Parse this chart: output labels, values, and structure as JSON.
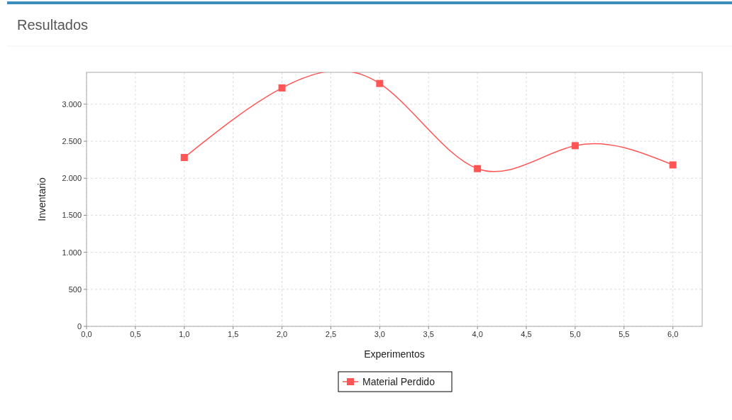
{
  "chart_data": {
    "type": "line",
    "title": "Resultados",
    "xlabel": "Experimentos",
    "ylabel": "Inventario",
    "x": [
      1,
      2,
      3,
      4,
      5,
      6
    ],
    "series": [
      {
        "name": "Material Perdido",
        "color": "#ff5555",
        "values": [
          2280,
          3220,
          3280,
          2130,
          2440,
          2180
        ]
      }
    ],
    "xlim": [
      0,
      6.3
    ],
    "xticks": [
      {
        "value": 0,
        "label": "0,0"
      },
      {
        "value": 0.5,
        "label": "0,5"
      },
      {
        "value": 1,
        "label": "1,0"
      },
      {
        "value": 1.5,
        "label": "1,5"
      },
      {
        "value": 2,
        "label": "2,0"
      },
      {
        "value": 2.5,
        "label": "2,5"
      },
      {
        "value": 3,
        "label": "3,0"
      },
      {
        "value": 3.5,
        "label": "3,5"
      },
      {
        "value": 4,
        "label": "4,0"
      },
      {
        "value": 4.5,
        "label": "4,5"
      },
      {
        "value": 5,
        "label": "5,0"
      },
      {
        "value": 5.5,
        "label": "5,5"
      },
      {
        "value": 6,
        "label": "6,0"
      }
    ],
    "ylim": [
      0,
      3430
    ],
    "yticks": [
      0,
      500,
      {
        "value": 1000,
        "label": "1.000"
      },
      {
        "value": 1500,
        "label": "1.500"
      },
      {
        "value": 2000,
        "label": "2.000"
      },
      {
        "value": 2500,
        "label": "2.500"
      },
      {
        "value": 3000,
        "label": "3.000"
      }
    ],
    "grid": true,
    "legend": "bottom",
    "marker": "square",
    "line_style": "solid"
  }
}
